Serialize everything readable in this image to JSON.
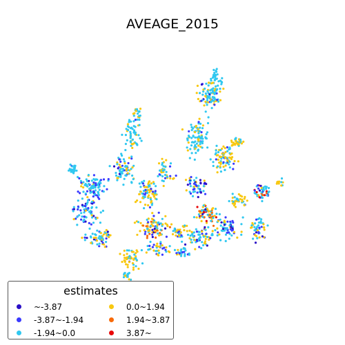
{
  "chart_data": {
    "type": "scatter",
    "title": "AVEAGE_2015",
    "legend": {
      "title": "estimates",
      "placement": "lower-left",
      "entries": [
        {
          "label": "~-3.87",
          "color": "#2a0fc6"
        },
        {
          "label": "-3.87~-1.94",
          "color": "#3a3aff"
        },
        {
          "label": "-1.94~0.0",
          "color": "#30c8f0"
        },
        {
          "label": "0.0~1.94",
          "color": "#f8c810"
        },
        {
          "label": "1.94~3.87",
          "color": "#f86a08"
        },
        {
          "label": "3.87~",
          "color": "#e80808"
        }
      ]
    },
    "axes_visible": false
  }
}
